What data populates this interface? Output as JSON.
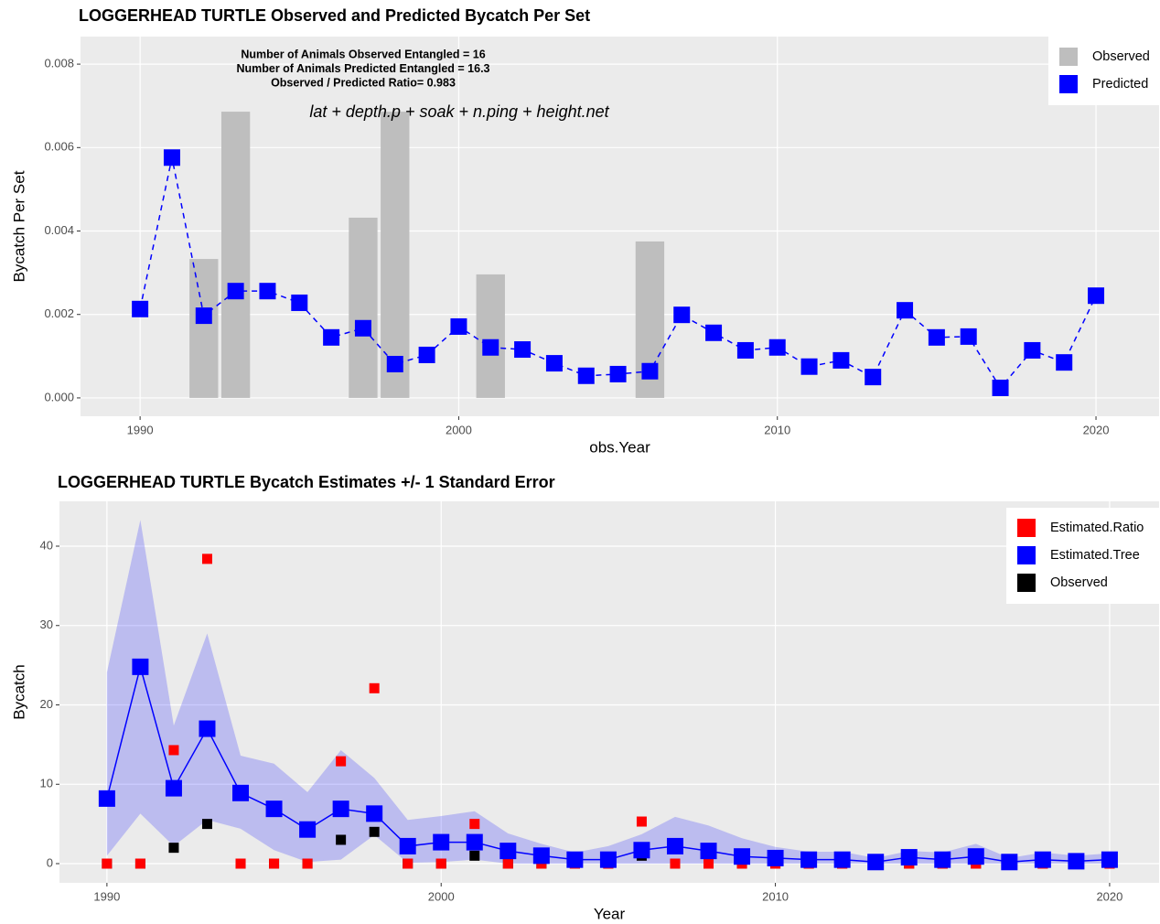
{
  "chart_data": [
    {
      "type": "combo",
      "title": "LOGGERHEAD TURTLE Observed and Predicted Bycatch Per Set",
      "annotations": [
        "Number of Animals Observed Entangled = 16",
        "Number of Animals Predicted Entangled = 16.3",
        "Observed / Predicted Ratio= 0.983"
      ],
      "model_formula": "lat + depth.p + soak + n.ping + height.net",
      "x_label": "obs.Year",
      "y_label": "Bycatch Per Set",
      "x": [
        1990,
        1991,
        1992,
        1993,
        1994,
        1995,
        1996,
        1997,
        1998,
        1999,
        2000,
        2001,
        2002,
        2003,
        2004,
        2005,
        2006,
        2007,
        2008,
        2009,
        2010,
        2011,
        2012,
        2013,
        2014,
        2015,
        2016,
        2017,
        2018,
        2019,
        2020
      ],
      "series": [
        {
          "name": "Observed",
          "type": "bar",
          "color": "#bebebe",
          "values": [
            0,
            0,
            0.00333,
            0.00686,
            0,
            0,
            0,
            0.00432,
            0.00686,
            0,
            0,
            0.00296,
            0,
            0,
            0,
            0,
            0.00375,
            0,
            0,
            0,
            0,
            0,
            0,
            0,
            0,
            0,
            0,
            0,
            0,
            0,
            0
          ]
        },
        {
          "name": "Predicted",
          "type": "line",
          "color": "#0000ff",
          "values": [
            0.00213,
            0.00576,
            0.00197,
            0.00256,
            0.00256,
            0.00228,
            0.00145,
            0.00167,
            0.00081,
            0.00103,
            0.00171,
            0.00121,
            0.00116,
            0.00083,
            0.00053,
            0.00057,
            0.00064,
            0.00199,
            0.00156,
            0.00114,
            0.00121,
            0.00075,
            0.0009,
            0.0005,
            0.0021,
            0.00145,
            0.00147,
            0.00024,
            0.00114,
            0.00085,
            0.00245
          ]
        }
      ],
      "xlim": [
        1988.13,
        2021.98
      ],
      "ylim": [
        -0.00044,
        0.00866
      ],
      "xticks": [
        1990,
        2000,
        2010,
        2020
      ],
      "yticks": [
        {
          "value": 0,
          "label": "0.000"
        },
        {
          "value": 0.002,
          "label": "0.002"
        },
        {
          "value": 0.004,
          "label": "0.004"
        },
        {
          "value": 0.006,
          "label": "0.006"
        },
        {
          "value": 0.008,
          "label": "0.008"
        }
      ],
      "grid": true,
      "legend": "top-right"
    },
    {
      "type": "ribbon",
      "title": "LOGGERHEAD TURTLE Bycatch Estimates +/- 1 Standard Error",
      "x_label": "Year",
      "y_label": "Bycatch",
      "x": [
        1990,
        1991,
        1992,
        1993,
        1994,
        1995,
        1996,
        1997,
        1998,
        1999,
        2000,
        2001,
        2002,
        2003,
        2004,
        2005,
        2006,
        2007,
        2008,
        2009,
        2010,
        2011,
        2012,
        2013,
        2014,
        2015,
        2016,
        2017,
        2018,
        2019,
        2020
      ],
      "series": [
        {
          "name": "Estimated.Ratio",
          "type": "point",
          "color": "#ff0000",
          "values": [
            0,
            0,
            14.3,
            38.4,
            0,
            0,
            0,
            12.9,
            22.1,
            0,
            0,
            5.0,
            0,
            0,
            0,
            0,
            5.3,
            0,
            0,
            0,
            0,
            0,
            0,
            0,
            0,
            0,
            0,
            0,
            0,
            0,
            0
          ]
        },
        {
          "name": "Estimated.Tree",
          "type": "line",
          "color": "#0000ff",
          "values": [
            8.2,
            24.8,
            9.5,
            17,
            8.9,
            6.9,
            4.3,
            6.9,
            6.3,
            2.2,
            2.7,
            2.7,
            1.6,
            1.0,
            0.5,
            0.5,
            1.7,
            2.2,
            1.6,
            0.9,
            0.7,
            0.5,
            0.5,
            0.2,
            0.8,
            0.5,
            0.9,
            0.2,
            0.5,
            0.3,
            0.5
          ],
          "lower": [
            1,
            6.3,
            2.2,
            5.5,
            4.4,
            1.7,
            0.2,
            0.5,
            3.6,
            0.1,
            0.2,
            0.5,
            0,
            0,
            0,
            0,
            0,
            0,
            0,
            0,
            0,
            0,
            0,
            0,
            0,
            0,
            0,
            0,
            0,
            0,
            0
          ],
          "upper": [
            24.1,
            43.3,
            17.4,
            29,
            13.6,
            12.6,
            9,
            14.3,
            10.8,
            5.5,
            6,
            6.6,
            3.8,
            2.5,
            1.4,
            2.2,
            3.7,
            5.9,
            4.8,
            3.2,
            2.1,
            1.5,
            1.5,
            0.7,
            1.6,
            1.4,
            2.5,
            0.7,
            1.4,
            1.0,
            1.3
          ]
        },
        {
          "name": "Observed",
          "type": "point",
          "color": "#000000",
          "values": [
            0,
            0,
            2,
            5,
            0,
            0,
            0,
            3,
            4,
            0,
            0,
            1,
            0,
            0,
            0,
            0,
            1,
            0,
            0,
            0,
            0,
            0,
            0,
            0,
            0,
            0,
            0,
            0,
            0,
            0,
            0
          ]
        }
      ],
      "xlim": [
        1988.58,
        2021.48
      ],
      "ylim": [
        -2.42,
        45.65
      ],
      "xticks": [
        1990,
        2000,
        2010,
        2020
      ],
      "yticks": [
        0,
        10,
        20,
        30,
        40
      ],
      "grid": true,
      "legend": "top-right"
    }
  ]
}
